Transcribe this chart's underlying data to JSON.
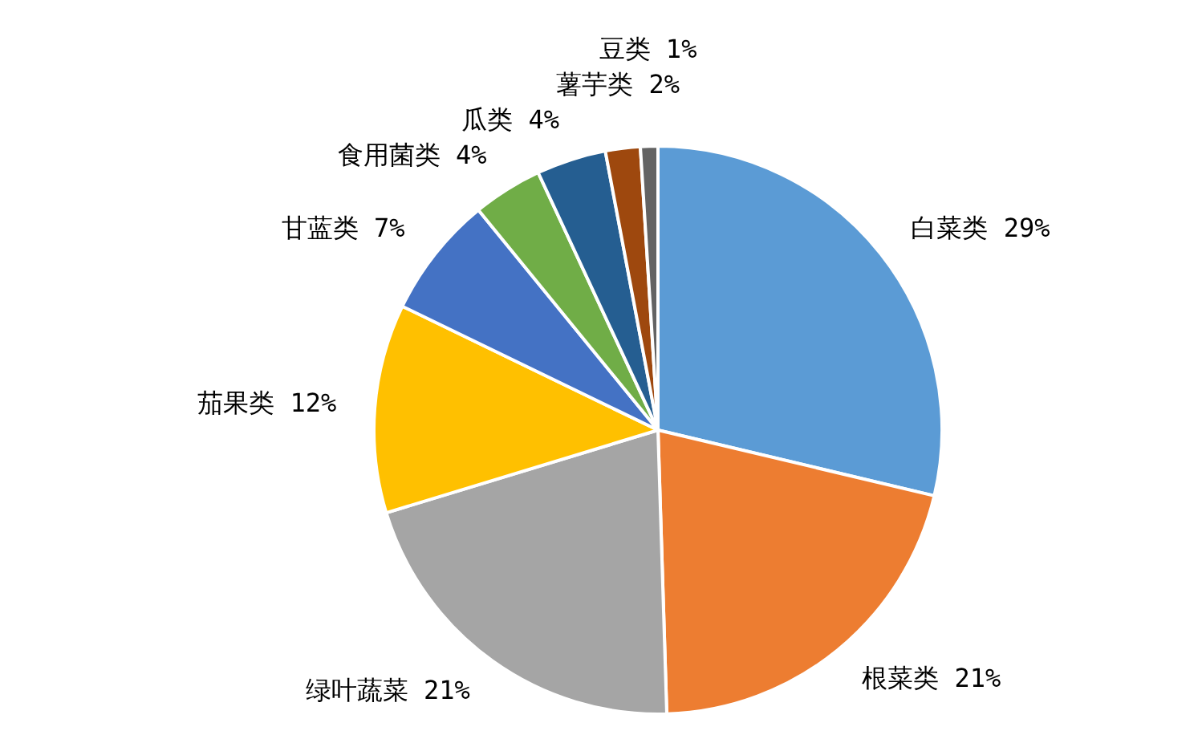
{
  "chart_data": {
    "type": "pie",
    "categories": [
      "白菜类",
      "根菜类",
      "绿叶蔬菜",
      "茄果类",
      "甘蓝类",
      "食用菌类",
      "瓜类",
      "薯芋类",
      "豆类"
    ],
    "values": [
      29,
      21,
      21,
      12,
      7,
      4,
      4,
      2,
      1
    ],
    "value_labels": [
      "29%",
      "21%",
      "21%",
      "12%",
      "7%",
      "4%",
      "4%",
      "2%",
      "1%"
    ],
    "colors": [
      "#5b9bd5",
      "#ed7d31",
      "#a5a5a5",
      "#ffc000",
      "#4472c4",
      "#70ad47",
      "#255e91",
      "#9e480e",
      "#636363"
    ],
    "legend": false
  }
}
